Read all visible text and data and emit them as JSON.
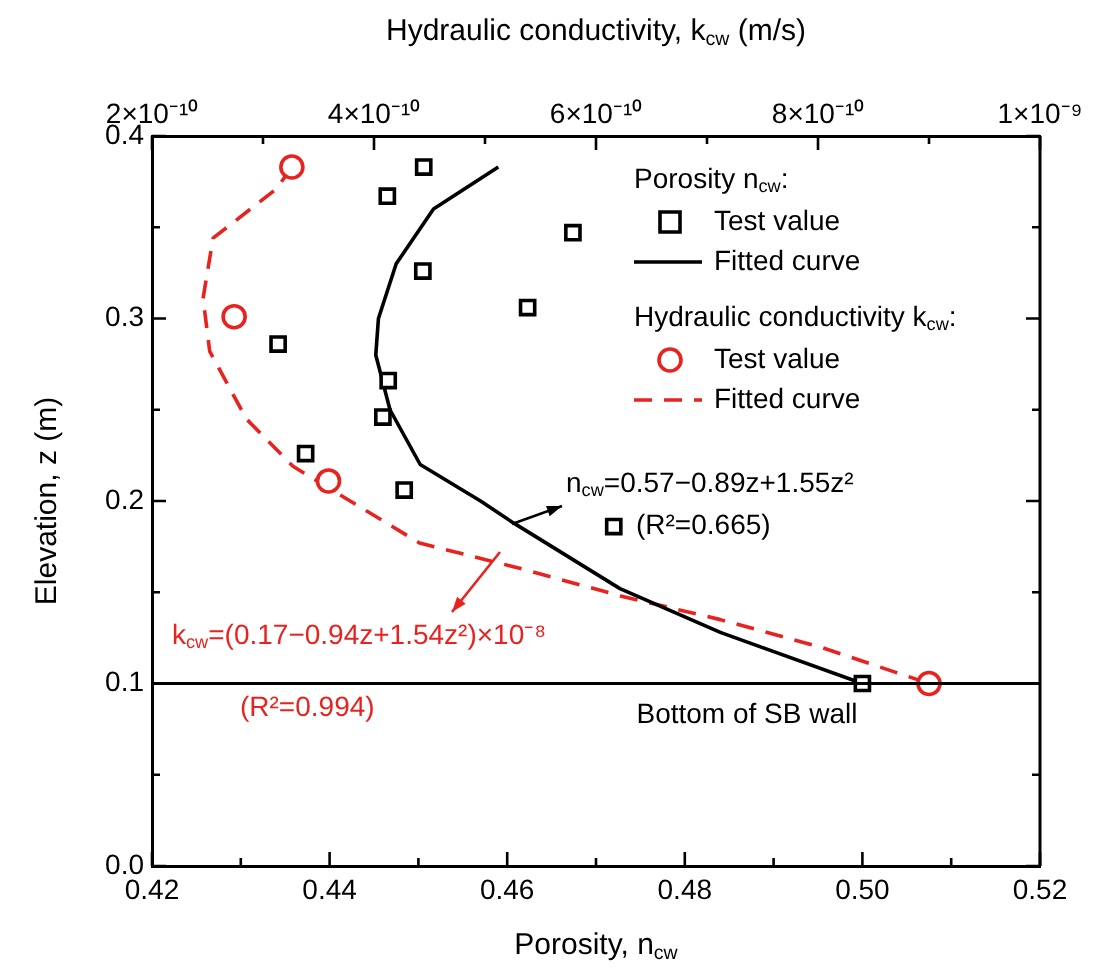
{
  "chart_data": {
    "type": "scatter",
    "xlabel": "Porosity, n$_{cw}$",
    "ylabel": "Elevation, z (m)",
    "x2label": "Hydraulic conductivity, k$_{cw}$ (m/s)",
    "xlim": [
      0.42,
      0.52
    ],
    "xticks": [
      0.42,
      {
        "value": 0.43,
        "label": null
      },
      0.44,
      {
        "value": 0.45,
        "label": null
      },
      0.46,
      {
        "value": 0.47,
        "label": null
      },
      0.48,
      {
        "value": 0.49,
        "label": null
      },
      "0.50",
      {
        "value": 0.51,
        "label": null
      },
      0.52
    ],
    "x2lim": [
      2e-10,
      1e-09
    ],
    "x2ticks": [
      {
        "value": 2e-10,
        "label": "2×10⁻¹⁰"
      },
      {
        "value": 3e-10,
        "label": null
      },
      {
        "value": 4e-10,
        "label": "4×10⁻¹⁰"
      },
      {
        "value": 5e-10,
        "label": null
      },
      {
        "value": 6e-10,
        "label": "6×10⁻¹⁰"
      },
      {
        "value": 7e-10,
        "label": null
      },
      {
        "value": 8e-10,
        "label": "8×10⁻¹⁰"
      },
      {
        "value": 9e-10,
        "label": null
      },
      {
        "value": 1e-09,
        "label": "1×10⁻⁹"
      }
    ],
    "ylim": [
      0,
      0.4
    ],
    "yticks": [
      {
        "value": 0,
        "label": "0.0"
      },
      {
        "value": 0.05,
        "label": null
      },
      {
        "value": 0.1,
        "label": "0.1"
      },
      {
        "value": 0.15,
        "label": null
      },
      {
        "value": 0.2,
        "label": "0.2"
      },
      {
        "value": 0.25,
        "label": null
      },
      {
        "value": 0.3,
        "label": "0.3"
      },
      {
        "value": 0.35,
        "label": null
      },
      {
        "value": 0.4,
        "label": "0.4"
      }
    ],
    "grid": false,
    "legend": "top right",
    "series": [
      {
        "name": "Test value",
        "type": "scatter",
        "marker": "square",
        "color": "#000000",
        "x": [
          0.4506,
          0.4465,
          0.4505,
          0.4674,
          0.4623,
          0.4342,
          0.4466,
          0.446,
          0.4373,
          0.4484,
          0.472,
          0.5
        ],
        "values": [
          0.383,
          0.367,
          0.326,
          0.347,
          0.306,
          0.286,
          0.266,
          0.246,
          0.226,
          0.206,
          0.186,
          0.1
        ]
      },
      {
        "name": "Fitted curve",
        "type": "line",
        "line_style": "solid",
        "color": "#000000",
        "x": [
          0.459,
          0.4517,
          0.4475,
          0.4455,
          0.4452,
          0.4468,
          0.4502,
          0.457,
          0.4607,
          0.4727,
          0.484,
          0.5
        ],
        "values": [
          0.383,
          0.36,
          0.33,
          0.3,
          0.28,
          0.25,
          0.22,
          0.2,
          0.188,
          0.152,
          0.128,
          0.1
        ]
      },
      {
        "name": "Test value",
        "type": "scatter",
        "axis": "x2",
        "marker": "circle",
        "color": "#e8231f",
        "x": [
          3.26e-10,
          2.74e-10,
          3.59e-10,
          9e-10
        ],
        "values": [
          0.383,
          0.301,
          0.211,
          0.1
        ]
      },
      {
        "name": "Fitted curve",
        "type": "line",
        "axis": "x2",
        "line_style": "dashed",
        "color": "#e8231f",
        "x": [
          3.26e-10,
          3.12e-10,
          2.55e-10,
          2.46e-10,
          2.52e-10,
          2.85e-10,
          3.27e-10,
          4.41e-10,
          5.32e-10,
          6.22e-10,
          7.12e-10,
          8.02e-10,
          9e-10
        ],
        "values": [
          0.383,
          0.371,
          0.344,
          0.311,
          0.282,
          0.245,
          0.219,
          0.177,
          0.163,
          0.148,
          0.135,
          0.12,
          0.1
        ]
      }
    ],
    "ref_lines": [
      {
        "axis": "y",
        "value": 0.1,
        "label": "Bottom of SB wall",
        "color": "#000000"
      }
    ],
    "annotations": [
      "n$_{cw}$=0.57−0.89z+1.55z²",
      "(R²=0.665)",
      "k$_{cw}$=(0.17−0.94z+1.54z²)×10⁻⁸",
      "(R²=0.994)",
      "Porosity n$_{cw}$:",
      "Hydraulic conductivity k$_{cw}$:"
    ]
  }
}
